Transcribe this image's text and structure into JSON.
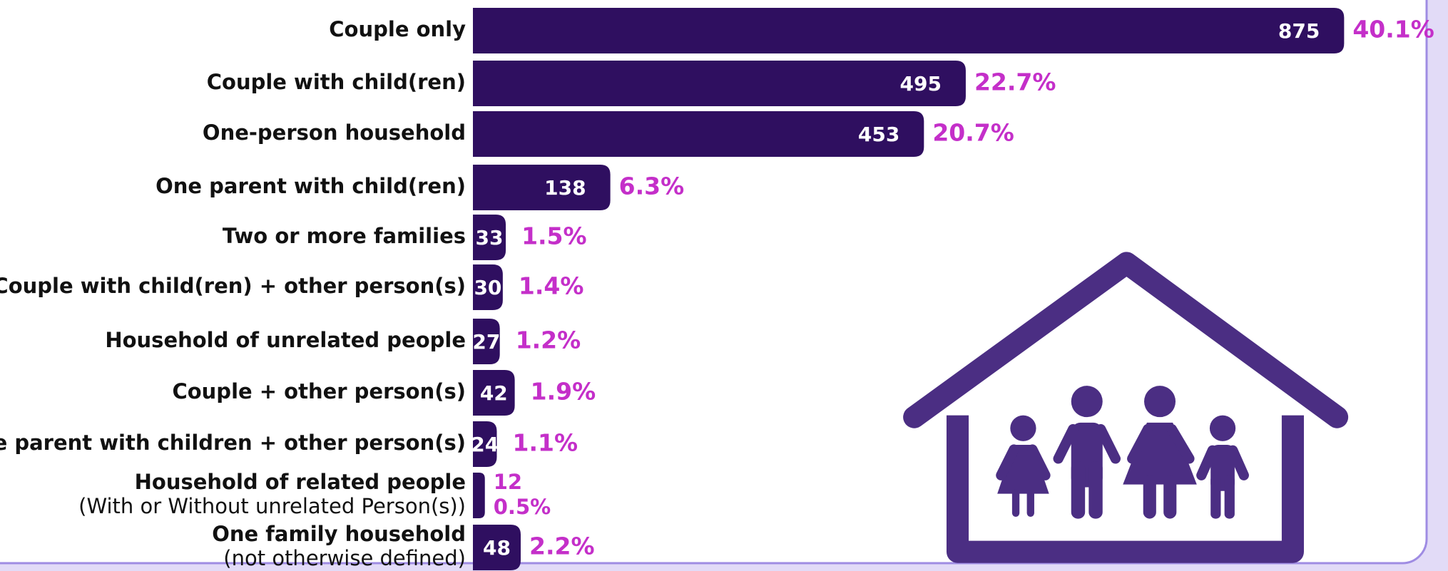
{
  "chart_data": {
    "type": "bar",
    "orientation": "horizontal",
    "categories": [
      "Couple only",
      "Couple with child(ren)",
      "One-person household",
      "One parent with child(ren)",
      "Two or more families",
      "Couple with child(ren) + other person(s)",
      "Household of unrelated people",
      "Couple + other person(s)",
      "One parent with children + other person(s)",
      "Household of related people",
      "One family household"
    ],
    "category_notes": {
      "9": "(With or Without unrelated Person(s))",
      "10": "(not otherwise defined)"
    },
    "values": [
      875,
      495,
      453,
      138,
      33,
      30,
      27,
      42,
      24,
      12,
      48
    ],
    "percent_labels": [
      "40.1%",
      "22.7%",
      "20.7%",
      "6.3%",
      "1.5%",
      "1.4%",
      "1.2%",
      "1.9%",
      "1.1%",
      "0.5%",
      "2.2%"
    ],
    "color": "#2f0f60",
    "percent_color": "#c42fc9",
    "xlim": [
      0,
      960
    ]
  }
}
